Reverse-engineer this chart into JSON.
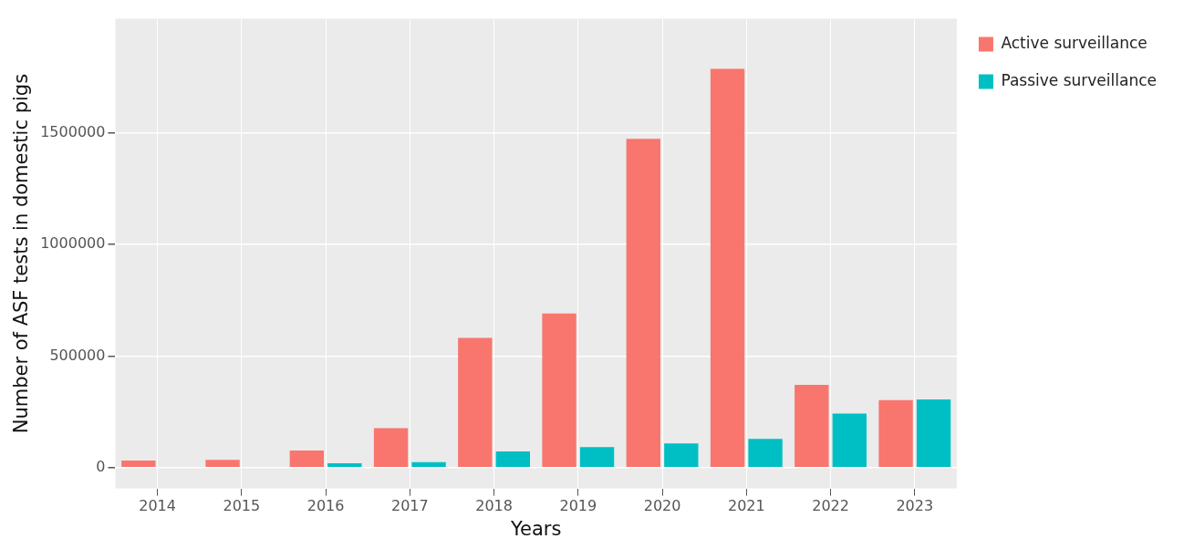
{
  "chart_data": {
    "type": "bar",
    "xlabel": "Years",
    "ylabel": "Number of ASF tests in domestic pigs",
    "categories": [
      "2014",
      "2015",
      "2016",
      "2017",
      "2018",
      "2019",
      "2020",
      "2021",
      "2022",
      "2023"
    ],
    "series": [
      {
        "name": "Active surveillance",
        "color": "#f8766d",
        "values": [
          32000,
          35000,
          77000,
          177000,
          581000,
          690000,
          1472000,
          1786000,
          371000,
          302000
        ]
      },
      {
        "name": "Passive surveillance",
        "color": "#00bfc4",
        "values": [
          null,
          null,
          20000,
          25000,
          73000,
          92000,
          109000,
          129000,
          242000,
          306000
        ]
      }
    ],
    "ylim": [
      -93000,
      2010000
    ],
    "yticks": [
      0,
      500000,
      1000000,
      1500000
    ],
    "grid": true,
    "legend": "top right"
  }
}
